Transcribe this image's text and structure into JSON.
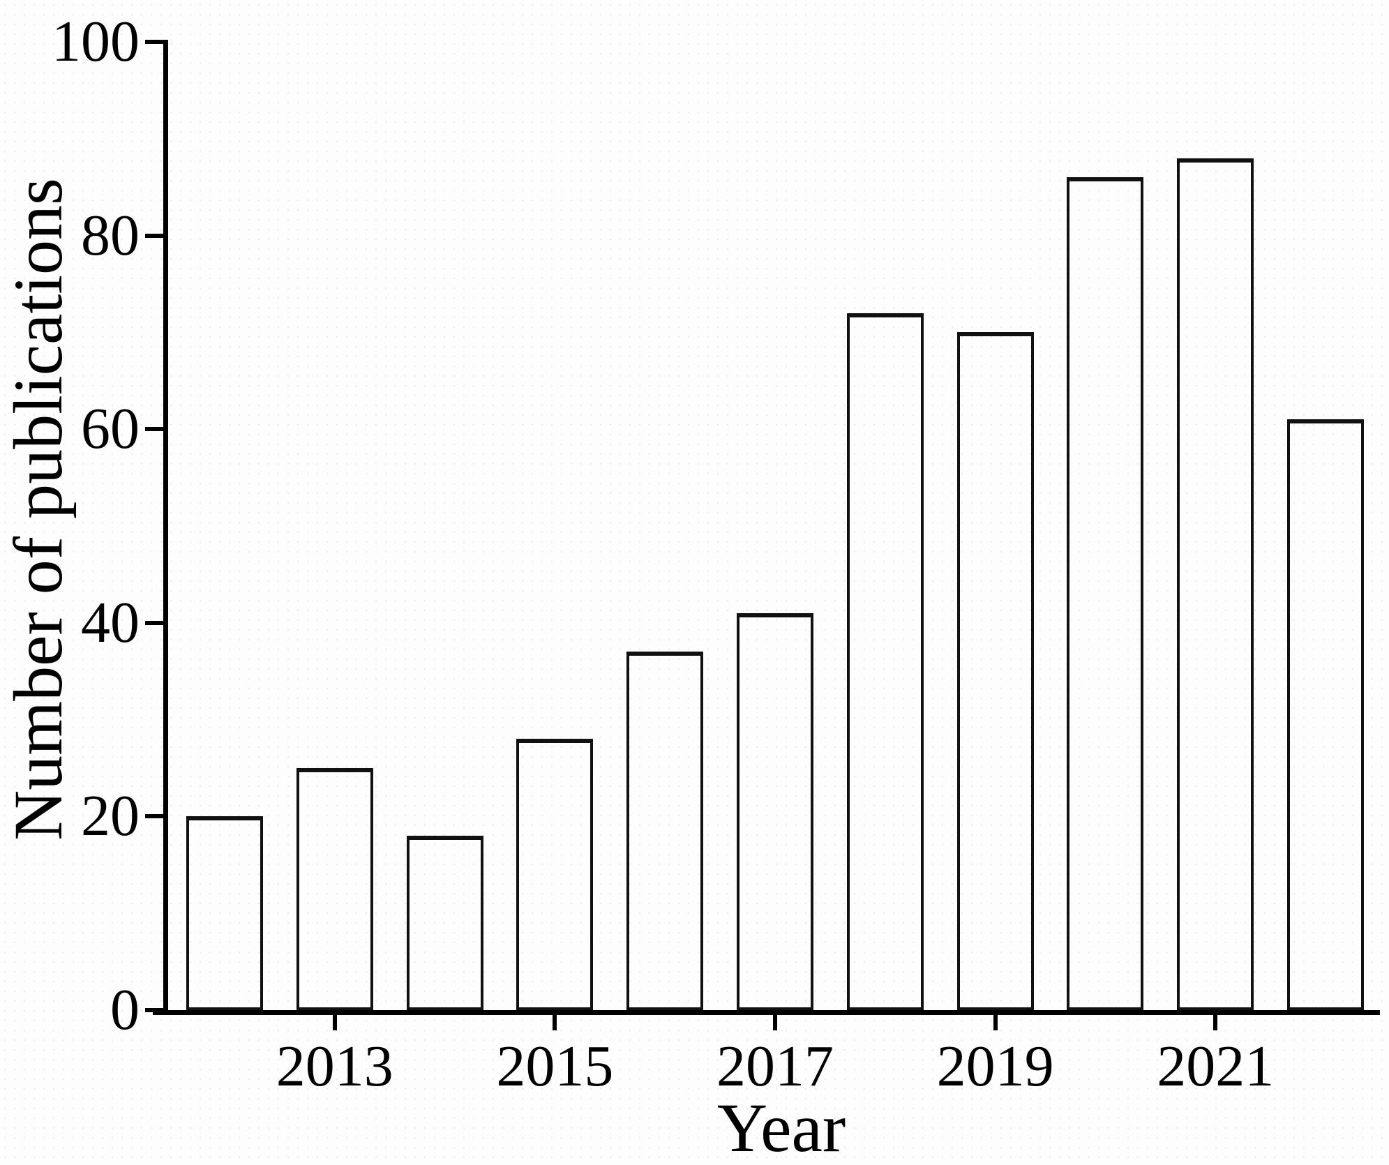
{
  "figure": {
    "background_color": "#fdfdfd",
    "axis_color": "#000000",
    "bar_fill": "transparent",
    "bar_border_color": "#111111"
  },
  "chart_data": {
    "type": "bar",
    "title": "",
    "xlabel": "Year",
    "ylabel": "Number of publications",
    "categories": [
      "2012",
      "2013",
      "2014",
      "2015",
      "2016",
      "2017",
      "2018",
      "2019",
      "2020",
      "2021",
      "2022"
    ],
    "values": [
      20,
      25,
      18,
      28,
      37,
      41,
      72,
      70,
      86,
      88,
      61
    ],
    "ylim": [
      0,
      100
    ],
    "yticks": [
      0,
      20,
      40,
      60,
      80,
      100
    ],
    "xtick_labels": [
      "2013",
      "2015",
      "2017",
      "2019",
      "2021"
    ],
    "grid": "off",
    "legend": "none",
    "bar_orientation": "vertical"
  }
}
